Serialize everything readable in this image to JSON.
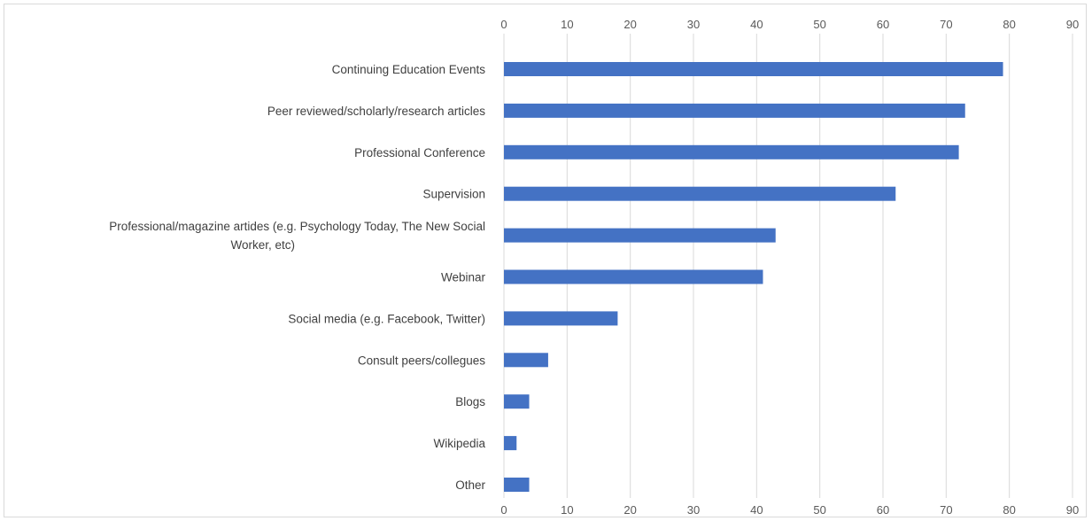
{
  "chart_data": {
    "type": "bar",
    "orientation": "horizontal",
    "title": "",
    "xlabel": "",
    "ylabel": "",
    "xlim": [
      0,
      90
    ],
    "ticks": [
      0,
      10,
      20,
      30,
      40,
      50,
      60,
      70,
      80,
      90
    ],
    "tick_labels": [
      "0",
      "10",
      "20",
      "30",
      "40",
      "50",
      "60",
      "70",
      "80",
      "90"
    ],
    "axis_position": "top-and-bottom",
    "grid": true,
    "legend": "none",
    "bar_color": "#4472c4",
    "categories": [
      "Continuing Education Events",
      "Peer reviewed/scholarly/research articles",
      "Professional Conference",
      "Supervision",
      "Professional/magazine artides (e.g. Psychology Today, The New Social Worker, etc)",
      "Webinar",
      "Social media (e.g. Facebook, Twitter)",
      "Consult peers/collegues",
      "Blogs",
      "Wikipedia",
      "Other"
    ],
    "category_lines": [
      [
        "Continuing Education Events"
      ],
      [
        "Peer reviewed/scholarly/research articles"
      ],
      [
        "Professional Conference"
      ],
      [
        "Supervision"
      ],
      [
        "Professional/magazine artides (e.g. Psychology Today, The New Social",
        "Worker, etc)"
      ],
      [
        "Webinar"
      ],
      [
        "Social media (e.g. Facebook, Twitter)"
      ],
      [
        "Consult peers/collegues"
      ],
      [
        "Blogs"
      ],
      [
        "Wikipedia"
      ],
      [
        "Other"
      ]
    ],
    "values": [
      79,
      73,
      72,
      62,
      43,
      41,
      18,
      7,
      4,
      2,
      4
    ]
  }
}
